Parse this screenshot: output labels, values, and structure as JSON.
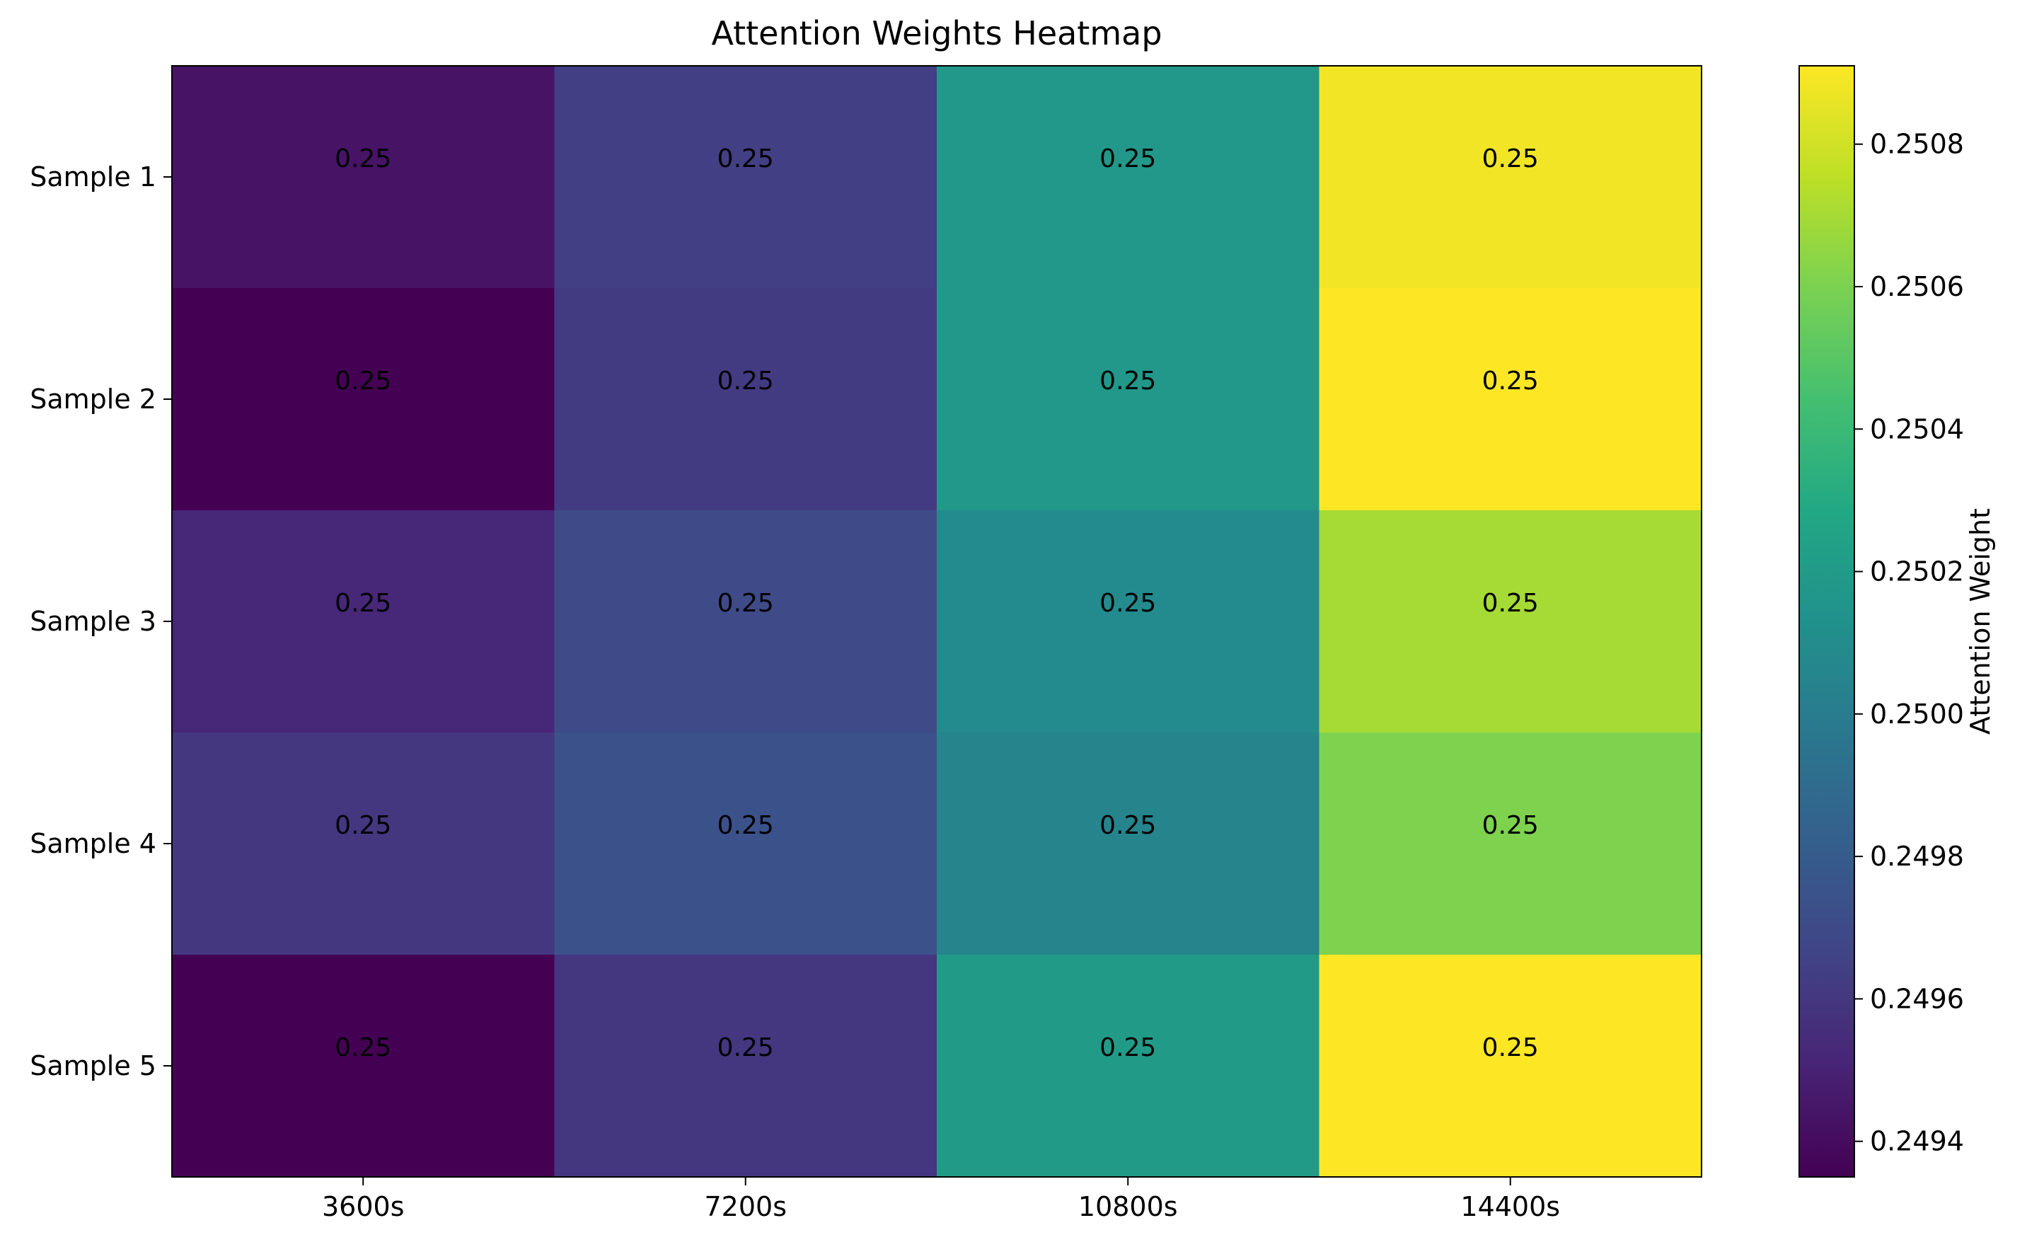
{
  "chart_data": {
    "type": "heatmap",
    "title": "Attention Weights Heatmap",
    "xlabel": "",
    "ylabel": "",
    "columns": [
      "3600s",
      "7200s",
      "10800s",
      "14400s"
    ],
    "rows": [
      "Sample 1",
      "Sample 2",
      "Sample 3",
      "Sample 4",
      "Sample 5"
    ],
    "values": [
      [
        0.24943,
        0.24964,
        0.25018,
        0.25088
      ],
      [
        0.24935,
        0.24962,
        0.25018,
        0.25091
      ],
      [
        0.24952,
        0.2497,
        0.25009,
        0.2507
      ],
      [
        0.2496,
        0.24974,
        0.25005,
        0.25061
      ],
      [
        0.24935,
        0.2496,
        0.2502,
        0.25091
      ]
    ],
    "cell_labels": [
      [
        "0.25",
        "0.25",
        "0.25",
        "0.25"
      ],
      [
        "0.25",
        "0.25",
        "0.25",
        "0.25"
      ],
      [
        "0.25",
        "0.25",
        "0.25",
        "0.25"
      ],
      [
        "0.25",
        "0.25",
        "0.25",
        "0.25"
      ],
      [
        "0.25",
        "0.25",
        "0.25",
        "0.25"
      ]
    ],
    "colorbar": {
      "label": "Attention Weight",
      "range": [
        0.24935,
        0.25091
      ],
      "ticks": [
        0.2494,
        0.2496,
        0.2498,
        0.25,
        0.2502,
        0.2504,
        0.2506,
        0.2508
      ],
      "tick_labels": [
        "0.2494",
        "0.2496",
        "0.2498",
        "0.2500",
        "0.2502",
        "0.2504",
        "0.2506",
        "0.2508"
      ],
      "colormap": "viridis"
    },
    "colors": {
      "viridis": [
        "#440154",
        "#482475",
        "#414487",
        "#355f8d",
        "#2a788e",
        "#21918c",
        "#22a884",
        "#44bf70",
        "#7ad151",
        "#bddf26",
        "#fde725"
      ]
    }
  }
}
